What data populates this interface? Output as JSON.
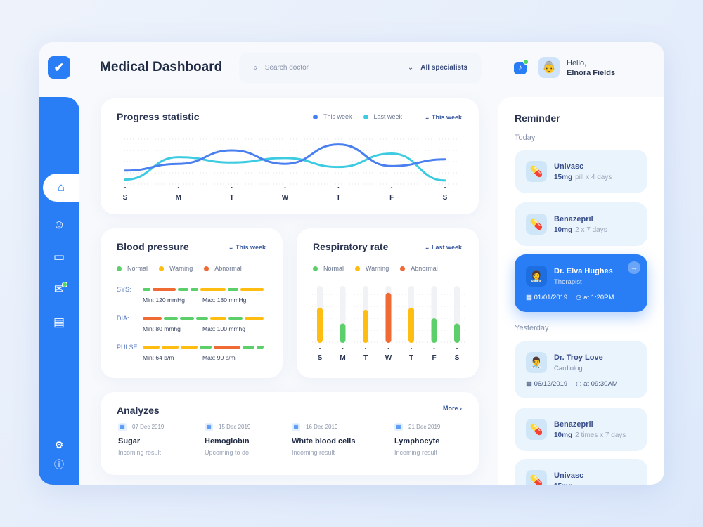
{
  "header": {
    "title": "Medical Dashboard",
    "search_placeholder": "Search doctor",
    "specialist_filter": "All specialists",
    "greeting": "Hello,",
    "user_name": "Elnora Fields"
  },
  "sidebar": {
    "items": [
      "home",
      "doctors",
      "clipboard",
      "messages",
      "inbox"
    ],
    "active": "home",
    "bottom": [
      "settings",
      "info"
    ]
  },
  "colors": {
    "accent": "#2a7ef5",
    "normal": "#5ccf6a",
    "warning": "#ffbd12",
    "abnormal": "#f06a35",
    "this_week": "#4a7ff0",
    "last_week": "#3ccbe0"
  },
  "progress": {
    "title": "Progress statistic",
    "legend": [
      "This week",
      "Last week"
    ],
    "filter": "This week"
  },
  "chart_data": [
    {
      "type": "line",
      "title": "Progress statistic",
      "categories": [
        "S",
        "M",
        "T",
        "W",
        "T",
        "F",
        "S"
      ],
      "series": [
        {
          "name": "This week",
          "values": [
            30,
            45,
            75,
            45,
            88,
            40,
            55
          ]
        },
        {
          "name": "Last week",
          "values": [
            10,
            60,
            48,
            58,
            38,
            68,
            8
          ]
        }
      ],
      "ylim": [
        0,
        100
      ],
      "grid": true
    },
    {
      "type": "bar",
      "title": "Respiratory rate",
      "categories": [
        "S",
        "M",
        "T",
        "W",
        "T",
        "F",
        "S"
      ],
      "values": [
        0.62,
        0.34,
        0.58,
        0.88,
        0.62,
        0.43,
        0.34
      ],
      "status": [
        "warning",
        "normal",
        "warning",
        "abnormal",
        "warning",
        "normal",
        "normal"
      ],
      "ylim": [
        0,
        1
      ],
      "grid": true
    }
  ],
  "blood_pressure": {
    "title": "Blood pressure",
    "filter": "This week",
    "legend": [
      "Normal",
      "Warning",
      "Abnormal"
    ],
    "rows": [
      {
        "label": "SYS:",
        "min": "Min: 120 mmHg",
        "max": "Max: 180 mmHg",
        "segments": [
          [
            "normal",
            3
          ],
          [
            "abnormal",
            9
          ],
          [
            "normal",
            4
          ],
          [
            "normal",
            3
          ],
          [
            "warning",
            10
          ],
          [
            "normal",
            4
          ],
          [
            "warning",
            9
          ]
        ]
      },
      {
        "label": "DIA:",
        "min": "Min: 80 mmhg",
        "max": "Max: 100 mmhg",
        "segments": [
          [
            "abnormal",
            8
          ],
          [
            "normal",
            6
          ],
          [
            "normal",
            6
          ],
          [
            "normal",
            5
          ],
          [
            "warning",
            7
          ],
          [
            "normal",
            6
          ],
          [
            "warning",
            8
          ]
        ]
      },
      {
        "label": "PULSE:",
        "min": "Min: 64 b/m",
        "max": "Max: 90 b/m",
        "segments": [
          [
            "warning",
            7
          ],
          [
            "warning",
            7
          ],
          [
            "warning",
            7
          ],
          [
            "normal",
            5
          ],
          [
            "abnormal",
            11
          ],
          [
            "normal",
            5
          ],
          [
            "normal",
            3
          ]
        ]
      }
    ]
  },
  "respiratory": {
    "title": "Respiratory rate",
    "filter": "Last week",
    "legend": [
      "Normal",
      "Warning",
      "Abnormal"
    ]
  },
  "analyzes": {
    "title": "Analyzes",
    "more": "More",
    "items": [
      {
        "date": "07 Dec 2019",
        "name": "Sugar",
        "status": "Incoming result"
      },
      {
        "date": "15 Dec 2019",
        "name": "Hemoglobin",
        "status": "Upcoming to do"
      },
      {
        "date": "16 Dec 2019",
        "name": "White blood cells",
        "status": "Incoming result"
      },
      {
        "date": "21 Dec 2019",
        "name": "Lymphocyte",
        "status": "Incoming result"
      }
    ]
  },
  "reminder": {
    "title": "Reminder",
    "today": "Today",
    "yesterday": "Yesterday",
    "items": [
      {
        "name": "Univasc",
        "dose": "15mg",
        "schedule": "pill x 4 days"
      },
      {
        "name": "Benazepril",
        "dose": "10mg",
        "schedule": "2 x 7 days"
      },
      {
        "name": "Dr. Elva Hughes",
        "role": "Therapist",
        "date": "01/01/2019",
        "time": "at 1:20PM"
      },
      {
        "name": "Dr. Troy Love",
        "role": "Cardiolog",
        "date": "06/12/2019",
        "time": "at 09:30AM"
      },
      {
        "name": "Benazepril",
        "dose": "10mg",
        "schedule": "2 times x 7 days"
      },
      {
        "name": "Univasc",
        "dose": "15mg",
        "schedule": ""
      }
    ]
  }
}
